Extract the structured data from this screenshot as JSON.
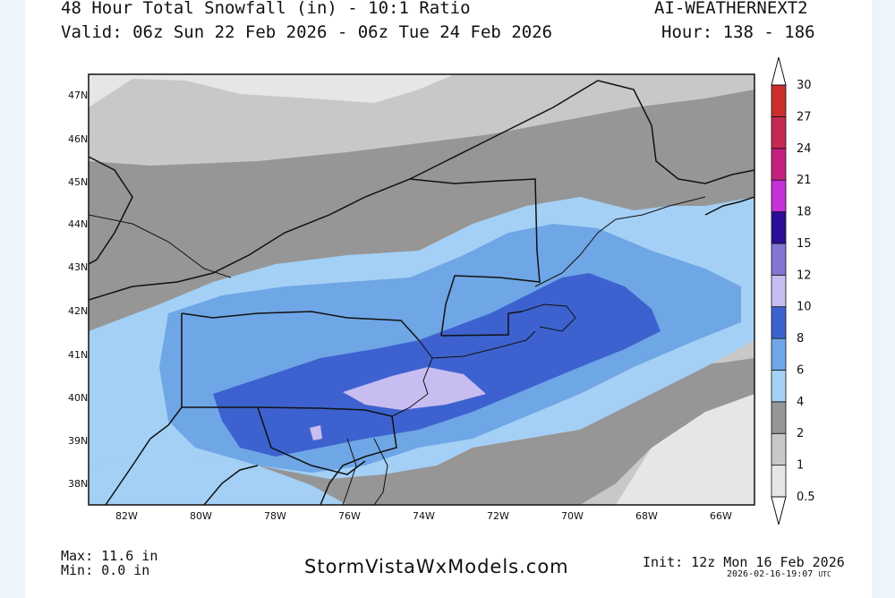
{
  "header": {
    "title": "48 Hour Total Snowfall (in) - 10:1 Ratio",
    "model": "AI-WEATHERNEXT2",
    "valid": "Valid: 06z Sun 22 Feb 2026 - 06z Tue 24 Feb 2026",
    "hours": "Hour: 138 - 186"
  },
  "map": {
    "lat_labels": [
      "47N",
      "46N",
      "45N",
      "44N",
      "43N",
      "42N",
      "41N",
      "40N",
      "39N",
      "38N"
    ],
    "lon_labels": [
      "82W",
      "80W",
      "78W",
      "76W",
      "74W",
      "72W",
      "70W",
      "68W",
      "66W"
    ]
  },
  "legend": {
    "levels": [
      "0.5",
      "1",
      "2",
      "4",
      "6",
      "8",
      "10",
      "12",
      "15",
      "18",
      "21",
      "24",
      "27",
      "30"
    ],
    "colors": [
      "#e6e6e6",
      "#c8c8c8",
      "#969696",
      "#a4d0f5",
      "#6fa6e6",
      "#3d62cf",
      "#c8bdf0",
      "#8276d2",
      "#2b0d96",
      "#c530d8",
      "#c4207e",
      "#c52a52",
      "#c9302c"
    ]
  },
  "footer": {
    "max": "Max: 11.6 in",
    "min": "Min: 0.0 in",
    "brand": "StormVistaWxModels.com",
    "init": "Init: 12z Mon 16 Feb 2026",
    "timestamp": "2026-02-16-19:07",
    "timestamp_tz": "UTC"
  }
}
